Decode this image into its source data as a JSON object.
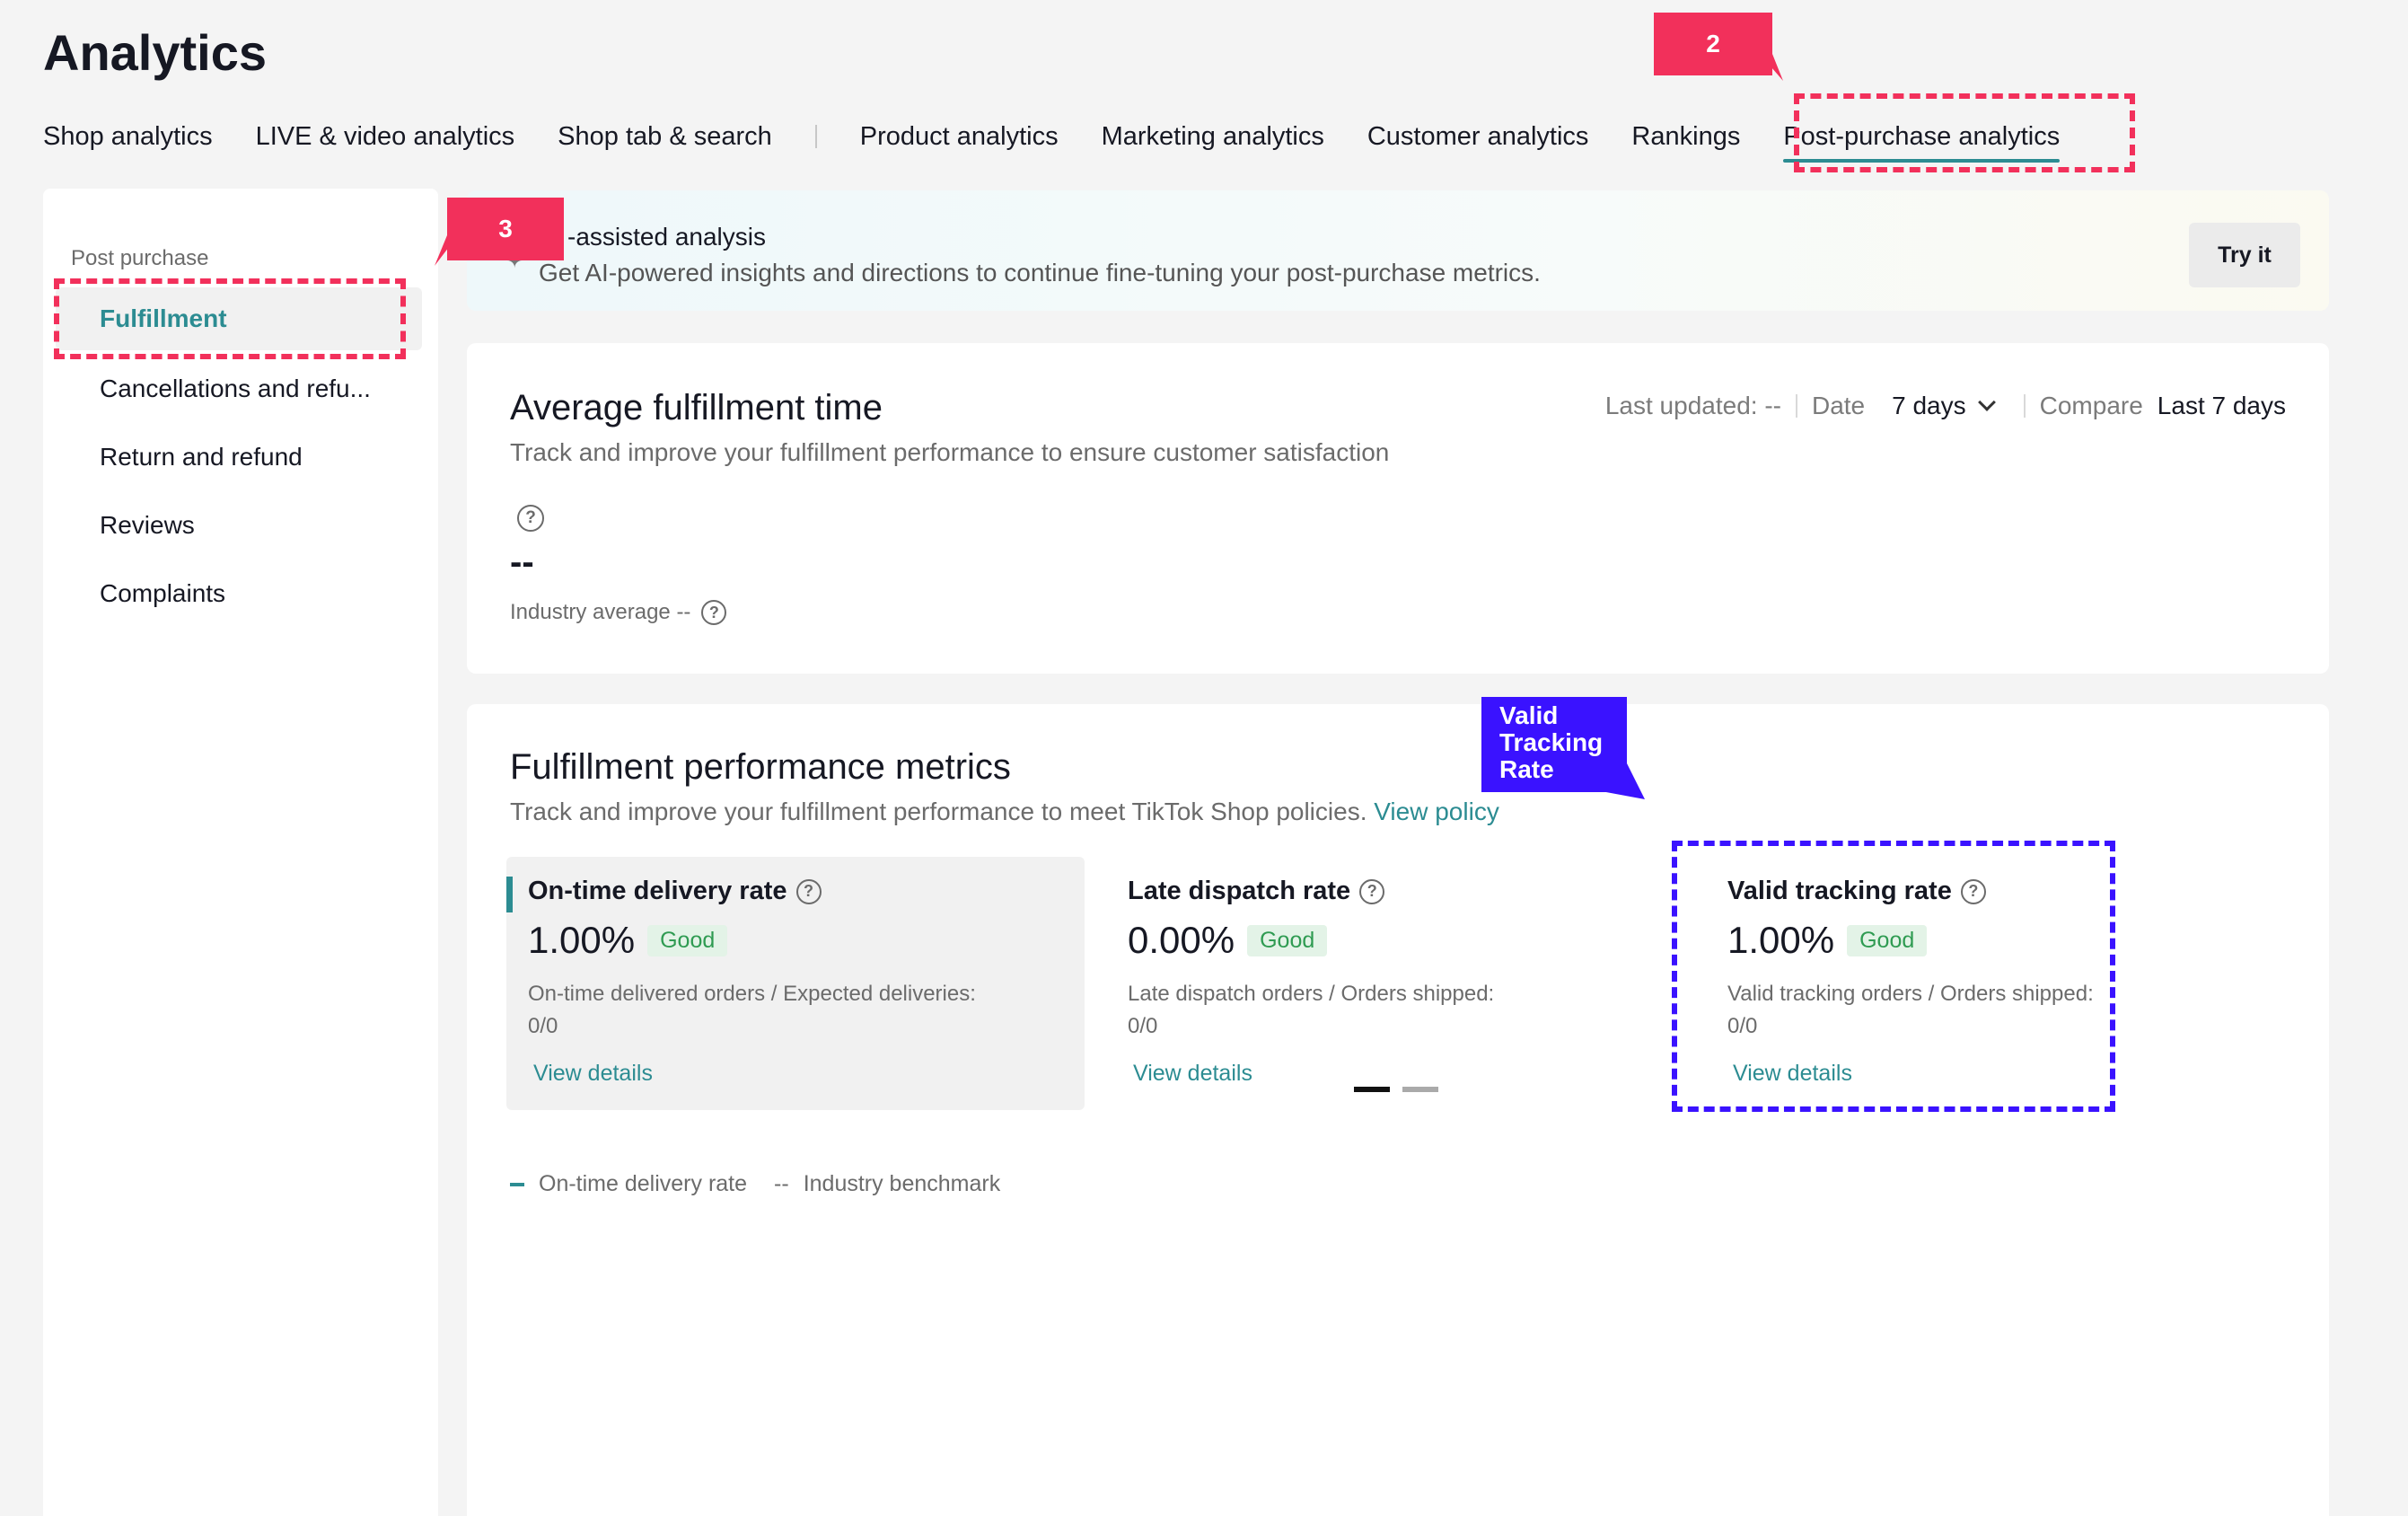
{
  "page_title": "Analytics",
  "tabs": [
    {
      "label": "Shop analytics"
    },
    {
      "label": "LIVE & video analytics"
    },
    {
      "label": "Shop tab & search"
    },
    {
      "label": "Product analytics"
    },
    {
      "label": "Marketing analytics"
    },
    {
      "label": "Customer analytics"
    },
    {
      "label": "Rankings"
    },
    {
      "label": "Post-purchase analytics",
      "active": true
    }
  ],
  "annotations": {
    "step_2": "2",
    "step_3": "3",
    "valid_tracking_callout": "Valid Tracking Rate"
  },
  "sidebar": {
    "heading": "Post purchase",
    "items": [
      {
        "label": "Fulfillment",
        "active": true
      },
      {
        "label": "Cancellations and refu..."
      },
      {
        "label": "Return and refund"
      },
      {
        "label": "Reviews"
      },
      {
        "label": "Complaints"
      }
    ]
  },
  "ai_banner": {
    "title": "-assisted analysis",
    "description": "Get AI-powered insights and directions to continue fine-tuning your post-purchase metrics.",
    "button": "Try it"
  },
  "avg_fulfillment": {
    "title": "Average fulfillment time",
    "subtitle": "Track and improve your fulfillment performance to ensure customer satisfaction",
    "last_updated": "Last updated: --",
    "date_label": "Date",
    "date_value": "7 days",
    "compare_label": "Compare",
    "compare_value": "Last 7 days",
    "value": "--",
    "industry_average": "Industry average --"
  },
  "performance": {
    "title": "Fulfillment performance metrics",
    "subtitle": "Track and improve your fulfillment performance to meet TikTok Shop policies.",
    "policy_link": "View policy",
    "metrics": [
      {
        "name": "On-time delivery rate",
        "value": "1.00%",
        "badge": "Good",
        "desc_line1": "On-time delivered orders / Expected deliveries:",
        "desc_line2": "0/0",
        "link": "View details"
      },
      {
        "name": "Late dispatch rate",
        "value": "0.00%",
        "badge": "Good",
        "desc_line1": "Late dispatch orders / Orders shipped:",
        "desc_line2": "0/0",
        "link": "View details"
      },
      {
        "name": "Valid tracking rate",
        "value": "1.00%",
        "badge": "Good",
        "desc_line1": "Valid tracking orders / Orders shipped:",
        "desc_line2": "0/0",
        "link": "View details"
      }
    ],
    "legend": {
      "series": "On-time delivery rate",
      "benchmark_marker": "--",
      "benchmark": "Industry benchmark"
    }
  },
  "colors": {
    "accent": "#2c8c92",
    "annotation_red": "#f2305b",
    "annotation_blue": "#3a12ff",
    "good_badge_bg": "#e3f3e7",
    "good_badge_text": "#2f9b52"
  }
}
